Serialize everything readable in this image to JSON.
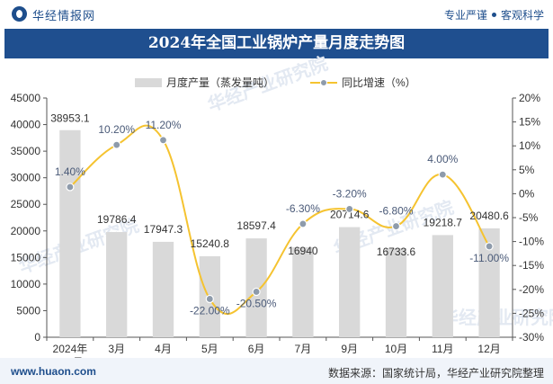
{
  "header": {
    "site_name": "华经情报网",
    "slogan_left": "专业严谨",
    "slogan_right": "客观科学"
  },
  "footer": {
    "url": "www.huaon.com",
    "source": "数据来源：国家统计局，华经产业研究院整理"
  },
  "watermark": "华经产业研究院",
  "colors": {
    "bar": "#d9d9d9",
    "line": "#f5c330",
    "marker": "#8e9bab",
    "title_bg": "#1f4f8f",
    "brand": "#1e4e8c"
  },
  "chart_data": {
    "type": "bar",
    "title": "2024年全国工业锅炉产量月度走势图",
    "categories": [
      "2024年\n1-2月",
      "3月",
      "4月",
      "5月",
      "6月",
      "7月",
      "9月",
      "10月",
      "11月",
      "12月"
    ],
    "series": [
      {
        "name": "月度产量（蒸发量吨）",
        "type": "bar",
        "axis": "left",
        "values": [
          38953.1,
          19786.4,
          17947.3,
          15240.8,
          18597.4,
          16940,
          20714.6,
          16733.6,
          19218.7,
          20480.6
        ],
        "labels": [
          "38953.1",
          "19786.4",
          "17947.3",
          "15240.8",
          "18597.4",
          "16940",
          "20714.6",
          "16733.6",
          "19218.7",
          "20480.6"
        ]
      },
      {
        "name": "同比增速（%）",
        "type": "line",
        "axis": "right",
        "values": [
          1.4,
          10.2,
          11.2,
          -22.0,
          -20.5,
          -6.3,
          -3.2,
          -6.8,
          4.0,
          -11.0
        ],
        "labels": [
          "1.40%",
          "10.20%",
          "11.20%",
          "-22.00%",
          "-20.50%",
          "-6.30%",
          "-3.20%",
          "-6.80%",
          "4.00%",
          "-11.00%"
        ]
      }
    ],
    "y_left": {
      "min": 0,
      "max": 45000,
      "ticks": [
        0,
        5000,
        10000,
        15000,
        20000,
        25000,
        30000,
        35000,
        40000,
        45000
      ],
      "tick_labels": [
        "0",
        "5000",
        "10000",
        "15000",
        "20000",
        "25000",
        "30000",
        "35000",
        "40000",
        "45000"
      ]
    },
    "y_right": {
      "min": -30,
      "max": 20,
      "ticks": [
        20,
        15,
        10,
        5,
        0,
        -5,
        -10,
        -15,
        -20,
        -25,
        -30
      ],
      "tick_labels": [
        "20%",
        "15%",
        "10%",
        "5%",
        "0%",
        "-5%",
        "-10%",
        "-15%",
        "-20%",
        "-25%",
        "-30%"
      ]
    },
    "legend_position": "top-center",
    "grid": false
  }
}
